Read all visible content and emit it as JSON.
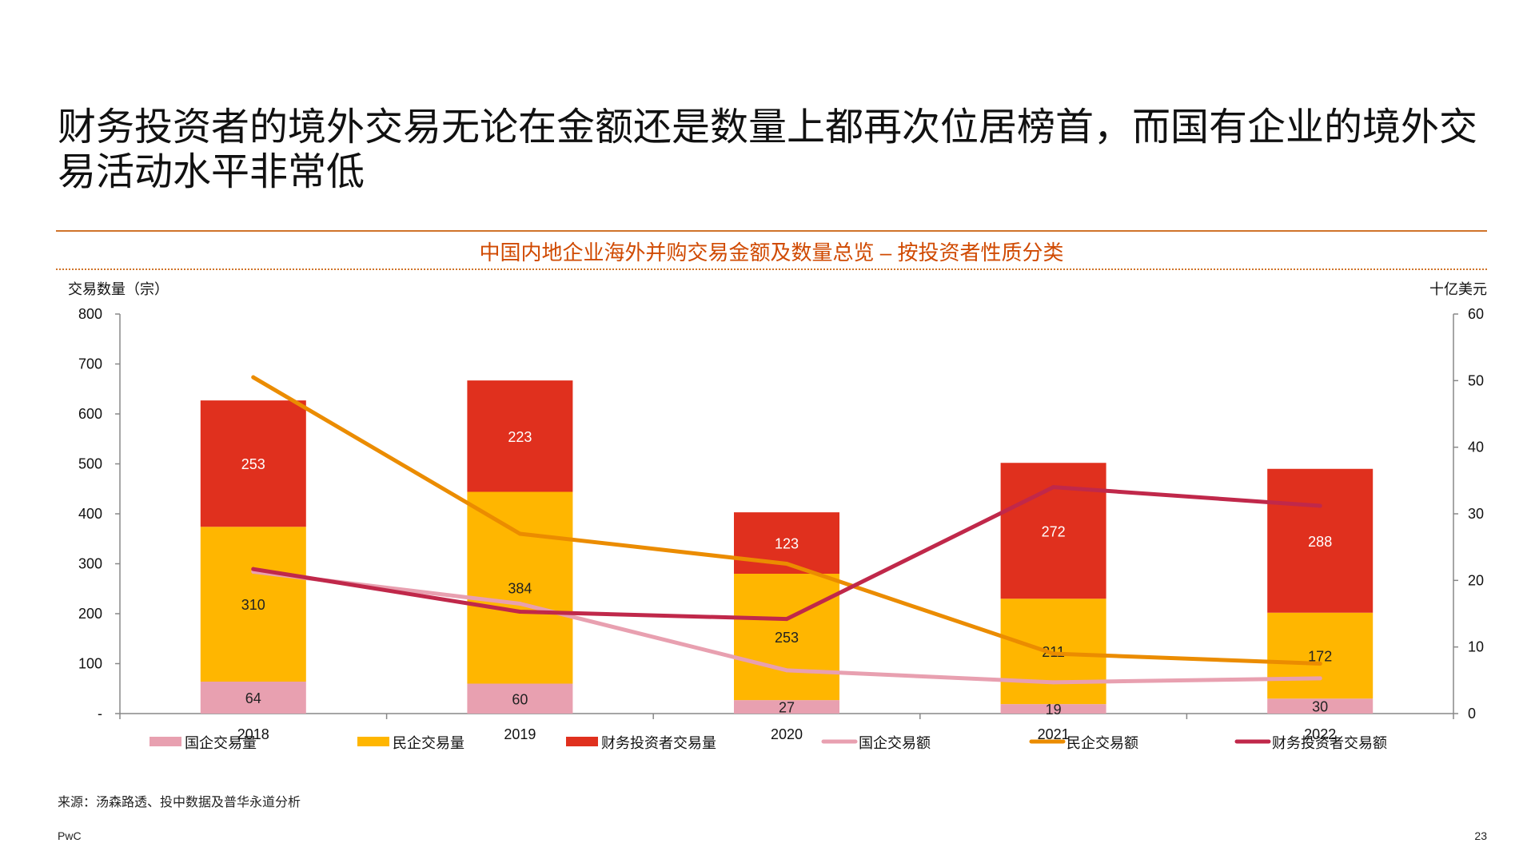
{
  "slide": {
    "title_line1": "财务投资者的境外交易无论在金额还是数量上都再次位居榜首，而国有企业的境外交",
    "title_line2": "易活动水平非常低",
    "source": "来源：汤森路透、投中数据及普华永道分析",
    "brand": "PwC",
    "page_number": "23"
  },
  "chart_data": {
    "type": "bar",
    "title": "中国内地企业海外并购交易金额及数量总览 – 按投资者性质分类",
    "ylabel_left": "交易数量（宗）",
    "ylabel_right": "十亿美元",
    "categories": [
      "2018",
      "2019",
      "2020",
      "2021",
      "2022"
    ],
    "y_left_ticks": [
      "-",
      "100",
      "200",
      "300",
      "400",
      "500",
      "600",
      "700",
      "800"
    ],
    "ylim_left": [
      0,
      800
    ],
    "y_right_ticks": [
      "0",
      "10",
      "20",
      "30",
      "40",
      "50",
      "60"
    ],
    "ylim_right": [
      0,
      60
    ],
    "bar_series": [
      {
        "name": "国企交易量",
        "color": "#e8a0b0",
        "values": [
          64,
          60,
          27,
          19,
          30
        ],
        "label_color": "#222222"
      },
      {
        "name": "民企交易量",
        "color": "#ffb600",
        "values": [
          310,
          384,
          253,
          211,
          172
        ],
        "label_color": "#222222"
      },
      {
        "name": "财务投资者交易量",
        "color": "#e0301e",
        "values": [
          253,
          223,
          123,
          272,
          288
        ],
        "label_color": "#ffffff"
      }
    ],
    "line_series": [
      {
        "name": "国企交易额",
        "color": "#e8a0b0",
        "values": [
          21.3,
          16.5,
          6.5,
          4.7,
          5.3
        ]
      },
      {
        "name": "民企交易额",
        "color": "#eb8c00",
        "values": [
          50.5,
          27.0,
          22.5,
          9.0,
          7.5
        ]
      },
      {
        "name": "财务投资者交易额",
        "color": "#c0284a",
        "values": [
          21.7,
          15.3,
          14.2,
          34.0,
          31.2
        ]
      }
    ],
    "legend": [
      {
        "name": "国企交易量",
        "kind": "bar",
        "color": "#e8a0b0"
      },
      {
        "name": "民企交易量",
        "kind": "bar",
        "color": "#ffb600"
      },
      {
        "name": "财务投资者交易量",
        "kind": "bar",
        "color": "#e0301e"
      },
      {
        "name": "国企交易额",
        "kind": "line",
        "color": "#e8a0b0"
      },
      {
        "name": "民企交易额",
        "kind": "line",
        "color": "#eb8c00"
      },
      {
        "name": "财务投资者交易额",
        "kind": "line",
        "color": "#c0284a"
      }
    ],
    "legend_position": "bottom",
    "grid": false
  }
}
